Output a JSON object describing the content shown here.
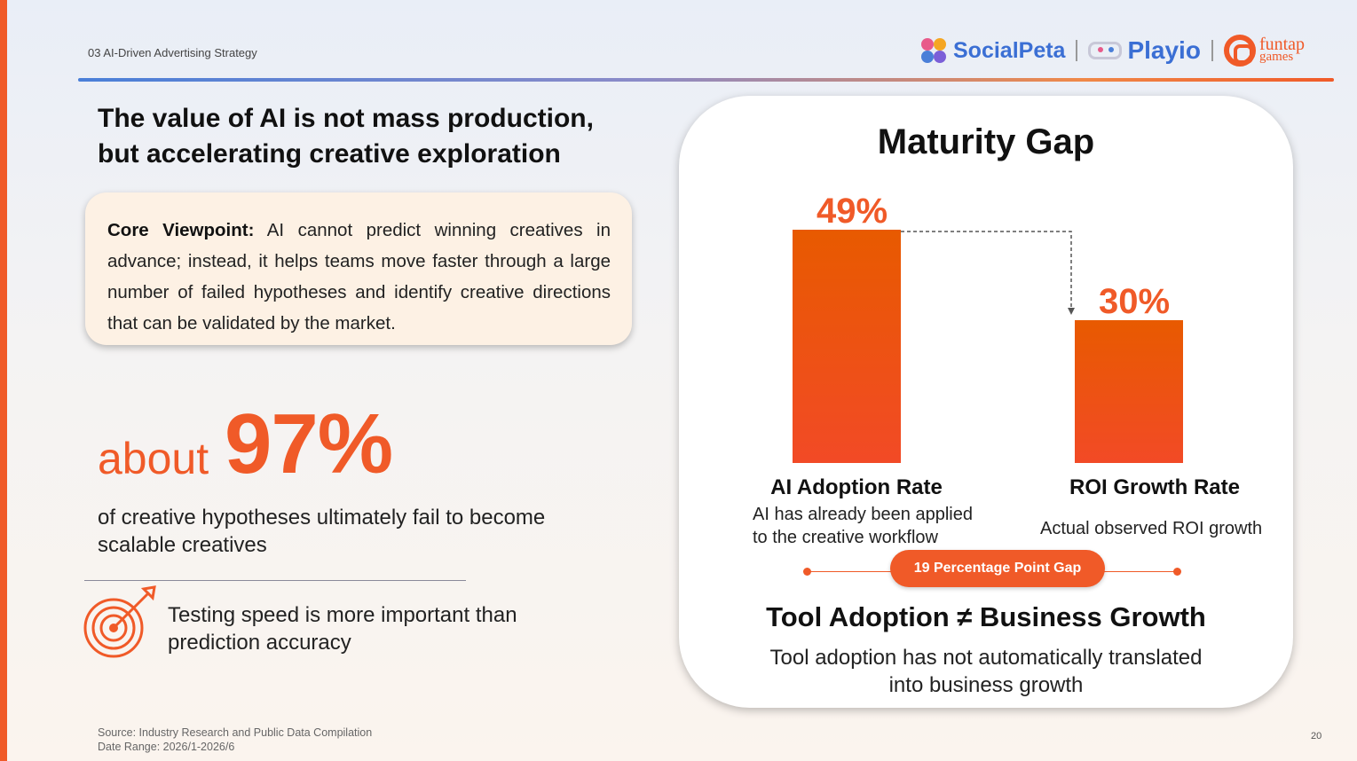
{
  "header": {
    "section_label": "03 AI-Driven Advertising Strategy",
    "logos": {
      "socialpeta": "SocialPeta",
      "playio": "Playio",
      "funtap_top": "funtap",
      "funtap_bottom": "games"
    }
  },
  "headline": {
    "line1": "The value of AI is not mass production,",
    "line2": "but accelerating creative exploration"
  },
  "viewpoint": {
    "label": "Core Viewpoint:",
    "text": " AI cannot predict winning creatives in advance; instead, it helps teams move faster through a large number of failed hypotheses and identify creative directions that can be validated by the market."
  },
  "stat": {
    "prefix": "about",
    "value": "97%",
    "description": "of creative hypotheses ultimately fail to become scalable creatives"
  },
  "testing": {
    "text_line1": "Testing speed is more important than",
    "text_line2": "prediction accuracy"
  },
  "footer": {
    "source": "Source: Industry Research and Public Data Compilation",
    "date_range": "Date Range: 2026/1-2026/6",
    "page_number": "20"
  },
  "card": {
    "title": "Maturity Gap",
    "gap_badge": "19 Percentage Point Gap",
    "claim": "Tool Adoption ≠ Business Growth",
    "claim_sub_line1": "Tool adoption has not automatically translated",
    "claim_sub_line2": "into business growth"
  },
  "chart_data": {
    "type": "bar",
    "categories": [
      "AI Adoption Rate",
      "ROI Growth Rate"
    ],
    "values": [
      49,
      30
    ],
    "value_labels": [
      "49%",
      "30%"
    ],
    "descriptions": [
      [
        "AI has already been applied",
        "to the creative workflow"
      ],
      [
        "Actual observed ROI growth"
      ]
    ],
    "title": "Maturity Gap",
    "xlabel": "",
    "ylabel": "",
    "grid": false,
    "colors": {
      "bar_top": "#e85a00",
      "bar_bottom": "#f24a26",
      "label": "#f05a28"
    }
  }
}
